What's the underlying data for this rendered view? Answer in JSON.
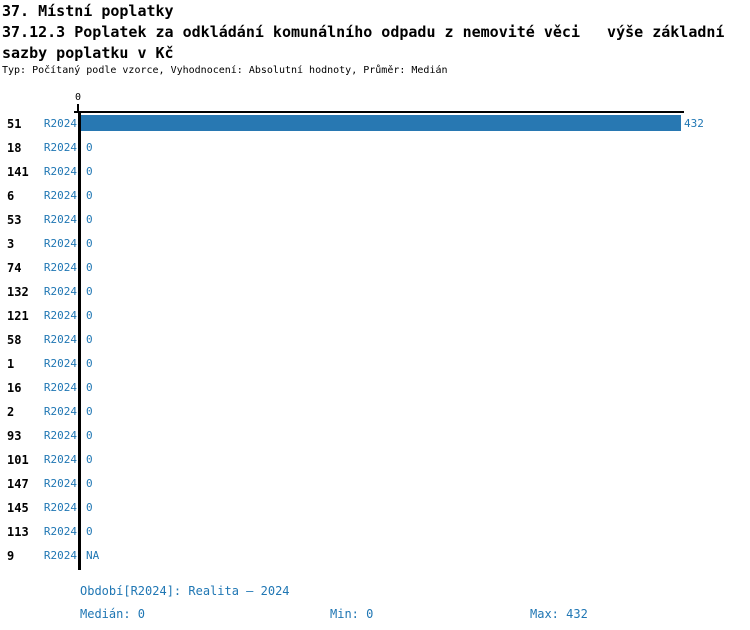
{
  "title": {
    "line1": "37. Místní poplatky",
    "line2": "37.12.3 Poplatek za odkládání komunálního odpadu z nemovité věci   výše základní",
    "line3": "sazby poplatku v Kč",
    "meta": "Typ: Počítaný podle vzorce, Vyhodnocení: Absolutní hodnoty, Průměr: Medián"
  },
  "chart_data": {
    "type": "bar",
    "orientation": "horizontal",
    "title": "37.12.3 Poplatek za odkládání komunálního odpadu z nemovité věci   výše základní sazby poplatku v Kč",
    "series_name": "R2024",
    "value_axis": {
      "position": "top",
      "range": [
        0,
        432
      ],
      "ticks": [
        0
      ],
      "tick_labels": [
        "0"
      ]
    },
    "categories": [
      "51",
      "18",
      "141",
      "6",
      "53",
      "3",
      "74",
      "132",
      "121",
      "58",
      "1",
      "16",
      "2",
      "93",
      "101",
      "147",
      "145",
      "113",
      "9"
    ],
    "rows": [
      {
        "id": "51",
        "series": "R2024",
        "value": 432,
        "label": "432"
      },
      {
        "id": "18",
        "series": "R2024",
        "value": 0,
        "label": "0"
      },
      {
        "id": "141",
        "series": "R2024",
        "value": 0,
        "label": "0"
      },
      {
        "id": "6",
        "series": "R2024",
        "value": 0,
        "label": "0"
      },
      {
        "id": "53",
        "series": "R2024",
        "value": 0,
        "label": "0"
      },
      {
        "id": "3",
        "series": "R2024",
        "value": 0,
        "label": "0"
      },
      {
        "id": "74",
        "series": "R2024",
        "value": 0,
        "label": "0"
      },
      {
        "id": "132",
        "series": "R2024",
        "value": 0,
        "label": "0"
      },
      {
        "id": "121",
        "series": "R2024",
        "value": 0,
        "label": "0"
      },
      {
        "id": "58",
        "series": "R2024",
        "value": 0,
        "label": "0"
      },
      {
        "id": "1",
        "series": "R2024",
        "value": 0,
        "label": "0"
      },
      {
        "id": "16",
        "series": "R2024",
        "value": 0,
        "label": "0"
      },
      {
        "id": "2",
        "series": "R2024",
        "value": 0,
        "label": "0"
      },
      {
        "id": "93",
        "series": "R2024",
        "value": 0,
        "label": "0"
      },
      {
        "id": "101",
        "series": "R2024",
        "value": 0,
        "label": "0"
      },
      {
        "id": "147",
        "series": "R2024",
        "value": 0,
        "label": "0"
      },
      {
        "id": "145",
        "series": "R2024",
        "value": 0,
        "label": "0"
      },
      {
        "id": "113",
        "series": "R2024",
        "value": 0,
        "label": "0"
      },
      {
        "id": "9",
        "series": "R2024",
        "value": null,
        "label": "NA"
      }
    ],
    "stats": {
      "median": 0,
      "min": 0,
      "max": 432
    },
    "bar_color": "#2878b2",
    "text_color": "#2077b4",
    "grid": false,
    "legend": false
  },
  "footer": {
    "period": "Období[R2024]: Realita – 2024",
    "median": "Medián: 0",
    "min": "Min: 0",
    "max": "Max: 432"
  }
}
